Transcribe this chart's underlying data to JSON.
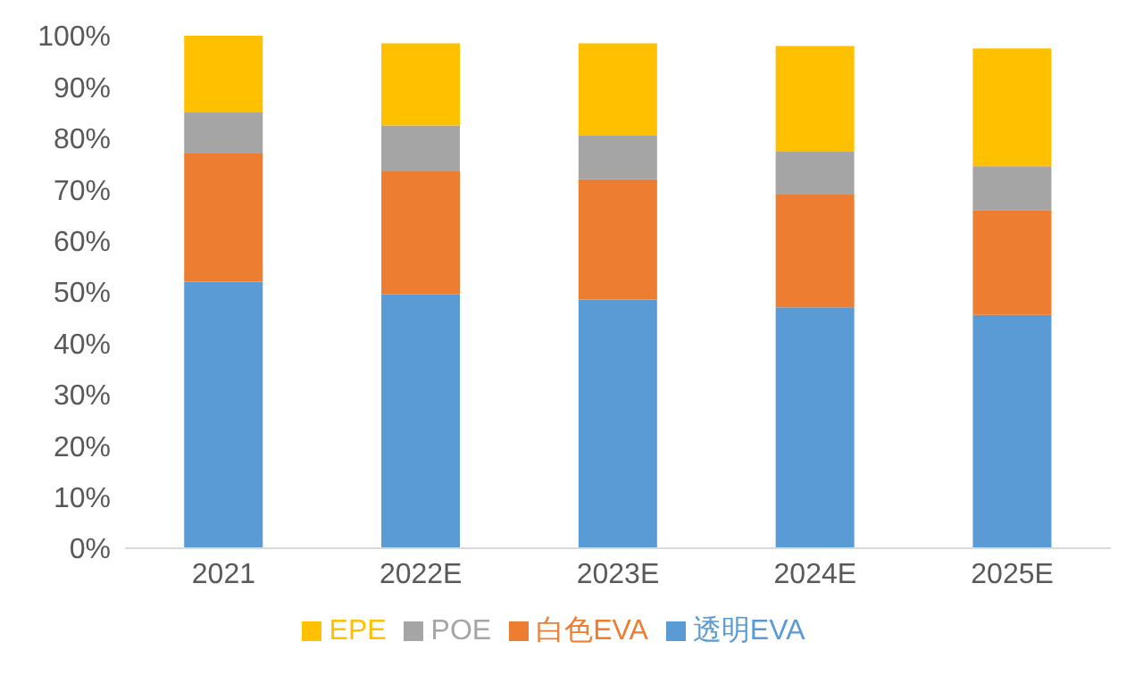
{
  "chart_data": {
    "type": "bar",
    "stacked": true,
    "categories": [
      "2021",
      "2022E",
      "2023E",
      "2024E",
      "2025E"
    ],
    "series": [
      {
        "name": "透明EVA",
        "color": "#5b9bd5",
        "values": [
          52,
          49.5,
          48.5,
          47,
          45.5
        ]
      },
      {
        "name": "白色EVA",
        "color": "#ed7d31",
        "values": [
          25,
          24,
          23.5,
          22,
          20.5
        ]
      },
      {
        "name": "POE",
        "color": "#a5a5a5",
        "values": [
          8,
          9,
          8.5,
          8.5,
          8.5
        ]
      },
      {
        "name": "EPE",
        "color": "#ffc000",
        "values": [
          15,
          16,
          18,
          20.5,
          23
        ]
      }
    ],
    "ylim": [
      0,
      100
    ],
    "yticks": [
      {
        "value": 0,
        "label": "0%"
      },
      {
        "value": 10,
        "label": "10%"
      },
      {
        "value": 20,
        "label": "20%"
      },
      {
        "value": 30,
        "label": "30%"
      },
      {
        "value": 40,
        "label": "40%"
      },
      {
        "value": 50,
        "label": "50%"
      },
      {
        "value": 60,
        "label": "60%"
      },
      {
        "value": 70,
        "label": "70%"
      },
      {
        "value": 80,
        "label": "80%"
      },
      {
        "value": 90,
        "label": "90%"
      },
      {
        "value": 100,
        "label": "100%"
      }
    ],
    "grid": false,
    "legend": "bottom"
  }
}
